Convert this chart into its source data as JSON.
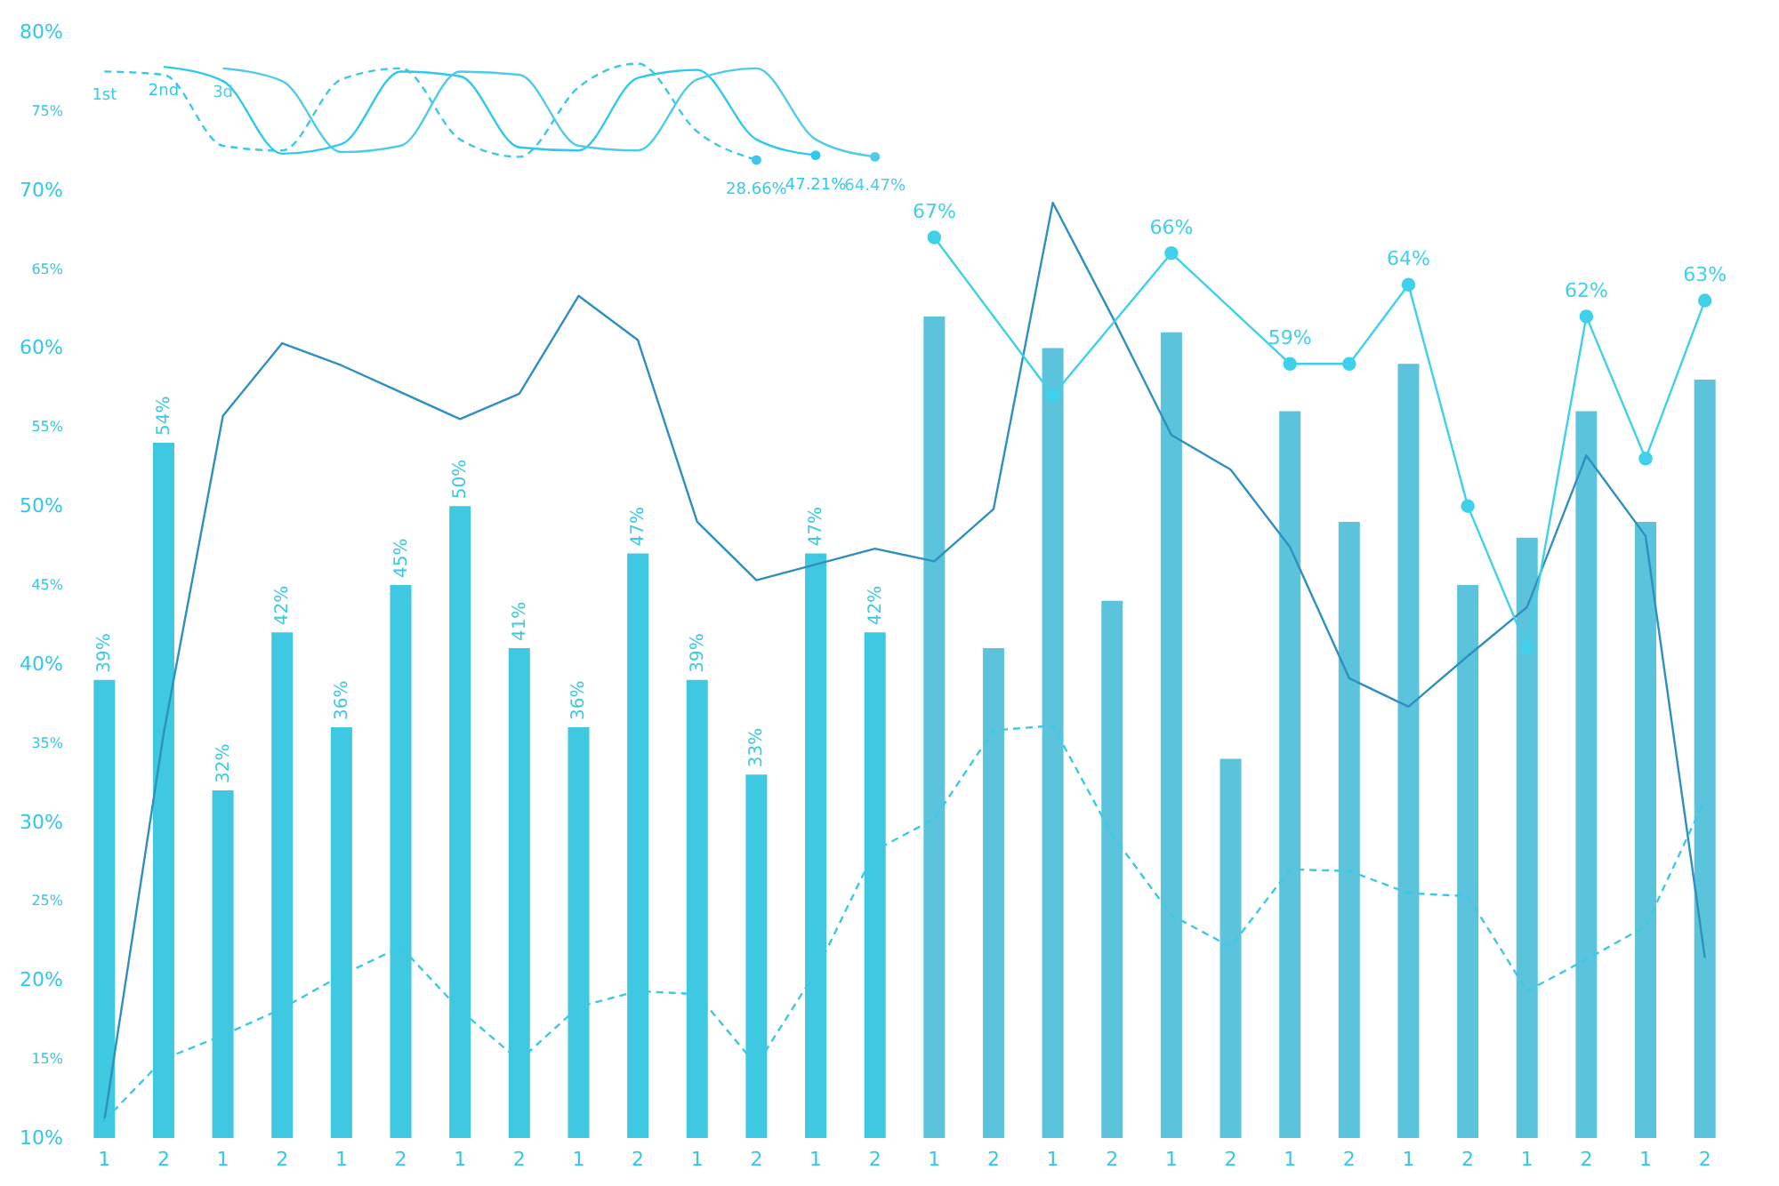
{
  "chart_data": {
    "type": "bar",
    "categories": [
      "1",
      "2",
      "1",
      "2",
      "1",
      "2",
      "1",
      "2",
      "1",
      "2",
      "1",
      "2",
      "1",
      "2",
      "1",
      "2",
      "1",
      "2",
      "1",
      "2",
      "1",
      "2",
      "1",
      "2",
      "1",
      "2",
      "1",
      "2"
    ],
    "ylim": [
      10,
      80
    ],
    "yticks": [
      {
        "value": 10,
        "label": "10%"
      },
      {
        "value": 15,
        "label": "15%"
      },
      {
        "value": 20,
        "label": "20%"
      },
      {
        "value": 25,
        "label": "25%"
      },
      {
        "value": 30,
        "label": "30%"
      },
      {
        "value": 35,
        "label": "35%"
      },
      {
        "value": 40,
        "label": "40%"
      },
      {
        "value": 45,
        "label": "45%"
      },
      {
        "value": 50,
        "label": "50%"
      },
      {
        "value": 55,
        "label": "55%"
      },
      {
        "value": 60,
        "label": "60%"
      },
      {
        "value": 65,
        "label": "65%"
      },
      {
        "value": 70,
        "label": "70%"
      },
      {
        "value": 75,
        "label": "75%"
      },
      {
        "value": 80,
        "label": "80%"
      }
    ],
    "grid": false,
    "annotations": [
      "28.66%",
      "47.21%",
      "64.47%"
    ],
    "series": [
      {
        "color": "#3ec8e2",
        "values": [
          39,
          54,
          32,
          42,
          36,
          45,
          50,
          41,
          36,
          47,
          39,
          33,
          47,
          42,
          null,
          null,
          null,
          null,
          null,
          null,
          null,
          null,
          null,
          null,
          null,
          null,
          null,
          null
        ],
        "value_labels": [
          "39%",
          "54%",
          "32%",
          "42%",
          "36%",
          "45%",
          "50%",
          "41%",
          "36%",
          "47%",
          "39%",
          "33%",
          "47%",
          "42%",
          null,
          null,
          null,
          null,
          null,
          null,
          null,
          null,
          null,
          null,
          null,
          null,
          null,
          null
        ]
      },
      {
        "color": "#5bc4dc",
        "values": [
          null,
          null,
          null,
          null,
          null,
          null,
          null,
          null,
          null,
          null,
          null,
          null,
          null,
          null,
          62,
          41,
          60,
          44,
          61,
          34,
          56,
          49,
          59,
          45,
          48,
          56,
          49,
          58
        ]
      },
      {
        "type": "line",
        "color": "#2f8fbf",
        "values": [
          11.1,
          35.6,
          55.7,
          60.3,
          58.9,
          57.2,
          55.5,
          57.1,
          63.3,
          60.5,
          49.0,
          45.3,
          46.3,
          47.3,
          46.5,
          49.8,
          69.2,
          62.0,
          54.5,
          52.3,
          47.4,
          39.1,
          37.3,
          40.5,
          43.6,
          53.2,
          48.1,
          21.4
        ]
      },
      {
        "type": "line",
        "line_style": "dashed",
        "color": "#3cc8e6",
        "values": [
          11.1,
          15.0,
          16.5,
          18.2,
          20.3,
          22.1,
          18.1,
          14.9,
          18.3,
          19.3,
          19.1,
          14.6,
          20.5,
          28.2,
          30.2,
          35.8,
          36.1,
          29.2,
          24.1,
          22.1,
          27.0,
          26.9,
          25.5,
          25.3,
          19.3,
          21.3,
          23.4,
          31.4
        ]
      },
      {
        "type": "line",
        "marker": "circle",
        "color": "#3fd0ea",
        "values": [
          null,
          null,
          null,
          null,
          null,
          null,
          null,
          null,
          null,
          null,
          null,
          null,
          null,
          null,
          67,
          null,
          57,
          null,
          66,
          null,
          59,
          59,
          64,
          50,
          41,
          62,
          53,
          63
        ],
        "value_labels": [
          null,
          null,
          null,
          null,
          null,
          null,
          null,
          null,
          null,
          null,
          null,
          null,
          null,
          null,
          "67%",
          null,
          null,
          null,
          "66%",
          null,
          "59%",
          null,
          "64%",
          null,
          null,
          "62%",
          null,
          "63%"
        ]
      },
      {
        "type": "line",
        "name": "1st",
        "line_style": "dashed",
        "color": "#3cc8e6",
        "values": [
          77.5,
          77.3,
          72.8,
          72.5,
          77.0,
          77.7,
          73.2,
          72.1,
          76.5,
          78.0,
          73.7,
          71.9,
          null,
          null,
          null,
          null,
          null,
          null,
          null,
          null,
          null,
          null,
          null,
          null,
          null,
          null,
          null,
          null
        ]
      },
      {
        "type": "line",
        "name": "2nd",
        "color": "#2ec9ec",
        "values": [
          null,
          77.8,
          76.9,
          72.3,
          72.9,
          77.5,
          77.2,
          72.7,
          72.5,
          77.1,
          77.6,
          73.2,
          72.2,
          null,
          null,
          null,
          null,
          null,
          null,
          null,
          null,
          null,
          null,
          null,
          null,
          null,
          null,
          null
        ]
      },
      {
        "type": "line",
        "name": "3d",
        "color": "#4fcbe8",
        "values": [
          null,
          null,
          77.7,
          76.9,
          72.4,
          72.8,
          77.5,
          77.3,
          72.8,
          72.5,
          77.0,
          77.7,
          73.2,
          72.1,
          null,
          null,
          null,
          null,
          null,
          null,
          null,
          null,
          null,
          null,
          null,
          null,
          null,
          null
        ]
      }
    ]
  }
}
